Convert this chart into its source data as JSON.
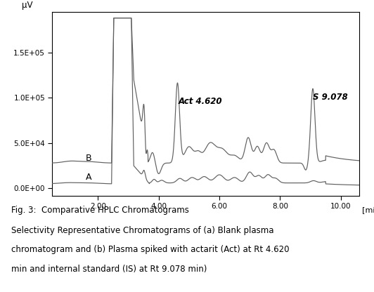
{
  "title": "Fig. 3:  Comparative HPLC Chromatograms",
  "caption_line2": "Selectivity Representative Chromatograms of (a) Blank plasma",
  "caption_line3": "chromatogram and (b) Plasma spiked with actarit (Act) at Rt 4.620",
  "caption_line4": "min and internal standard (IS) at Rt 9.078 min)",
  "ylabel": "μV",
  "xlabel": "[min]",
  "xlim": [
    0.5,
    10.6
  ],
  "ylim": [
    -8000,
    195000
  ],
  "yticks": [
    0,
    50000,
    100000,
    150000
  ],
  "ytick_labels": [
    "0.0E+00",
    "5.0E+04",
    "1.0E+05",
    "1.5E+05"
  ],
  "xticks": [
    2.0,
    4.0,
    6.0,
    8.0,
    10.0
  ],
  "xtick_labels": [
    "2.00",
    "4.00",
    "6.00",
    "8.00",
    "10.00"
  ],
  "label_A": "A",
  "label_B": "B",
  "label_Act": "Act 4.620",
  "label_S": "S 9.078",
  "line_color": "#606060",
  "background_color": "#ffffff",
  "B_baseline": 28000,
  "A_baseline": 5000
}
